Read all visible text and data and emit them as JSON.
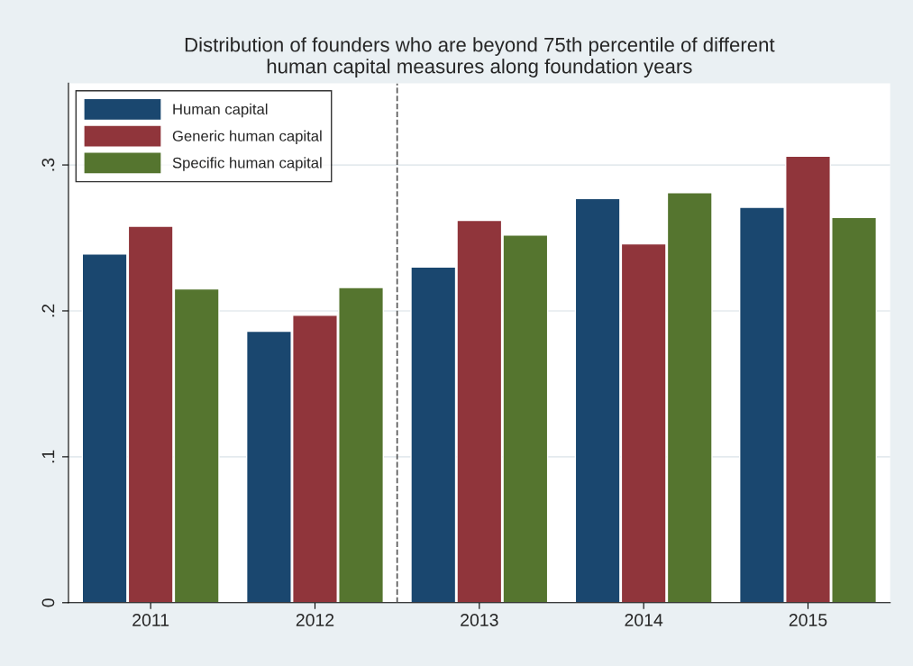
{
  "chart_data": {
    "type": "bar",
    "title": "Distribution of founders who are beyond 75th percentile of different\nhuman capital measures along foundation years",
    "x": [
      2011,
      2012,
      2013,
      2014,
      2015
    ],
    "series": [
      {
        "name": "Human capital",
        "color": "#1a476f",
        "values": [
          0.239,
          0.186,
          0.23,
          0.277,
          0.271
        ]
      },
      {
        "name": "Generic human capital",
        "color": "#90353b",
        "values": [
          0.258,
          0.197,
          0.262,
          0.246,
          0.306
        ]
      },
      {
        "name": "Specific human capital",
        "color": "#55752f",
        "values": [
          0.215,
          0.216,
          0.252,
          0.281,
          0.264
        ]
      }
    ],
    "xlim": [
      2010.5,
      2015.5
    ],
    "xticks": [
      2011,
      2012,
      2013,
      2014,
      2015
    ],
    "ylim": [
      0,
      0.356
    ],
    "yticks": [
      0,
      {
        "value": 0.1,
        "label": ".1"
      },
      {
        "value": 0.2,
        "label": ".2"
      },
      {
        "value": 0.3,
        "label": ".3"
      }
    ],
    "grid": "y",
    "legend": "top left",
    "ref_lines": [
      {
        "axis": "x",
        "value": 2012.5,
        "color": "#555555",
        "line_style": "dashed"
      }
    ]
  }
}
